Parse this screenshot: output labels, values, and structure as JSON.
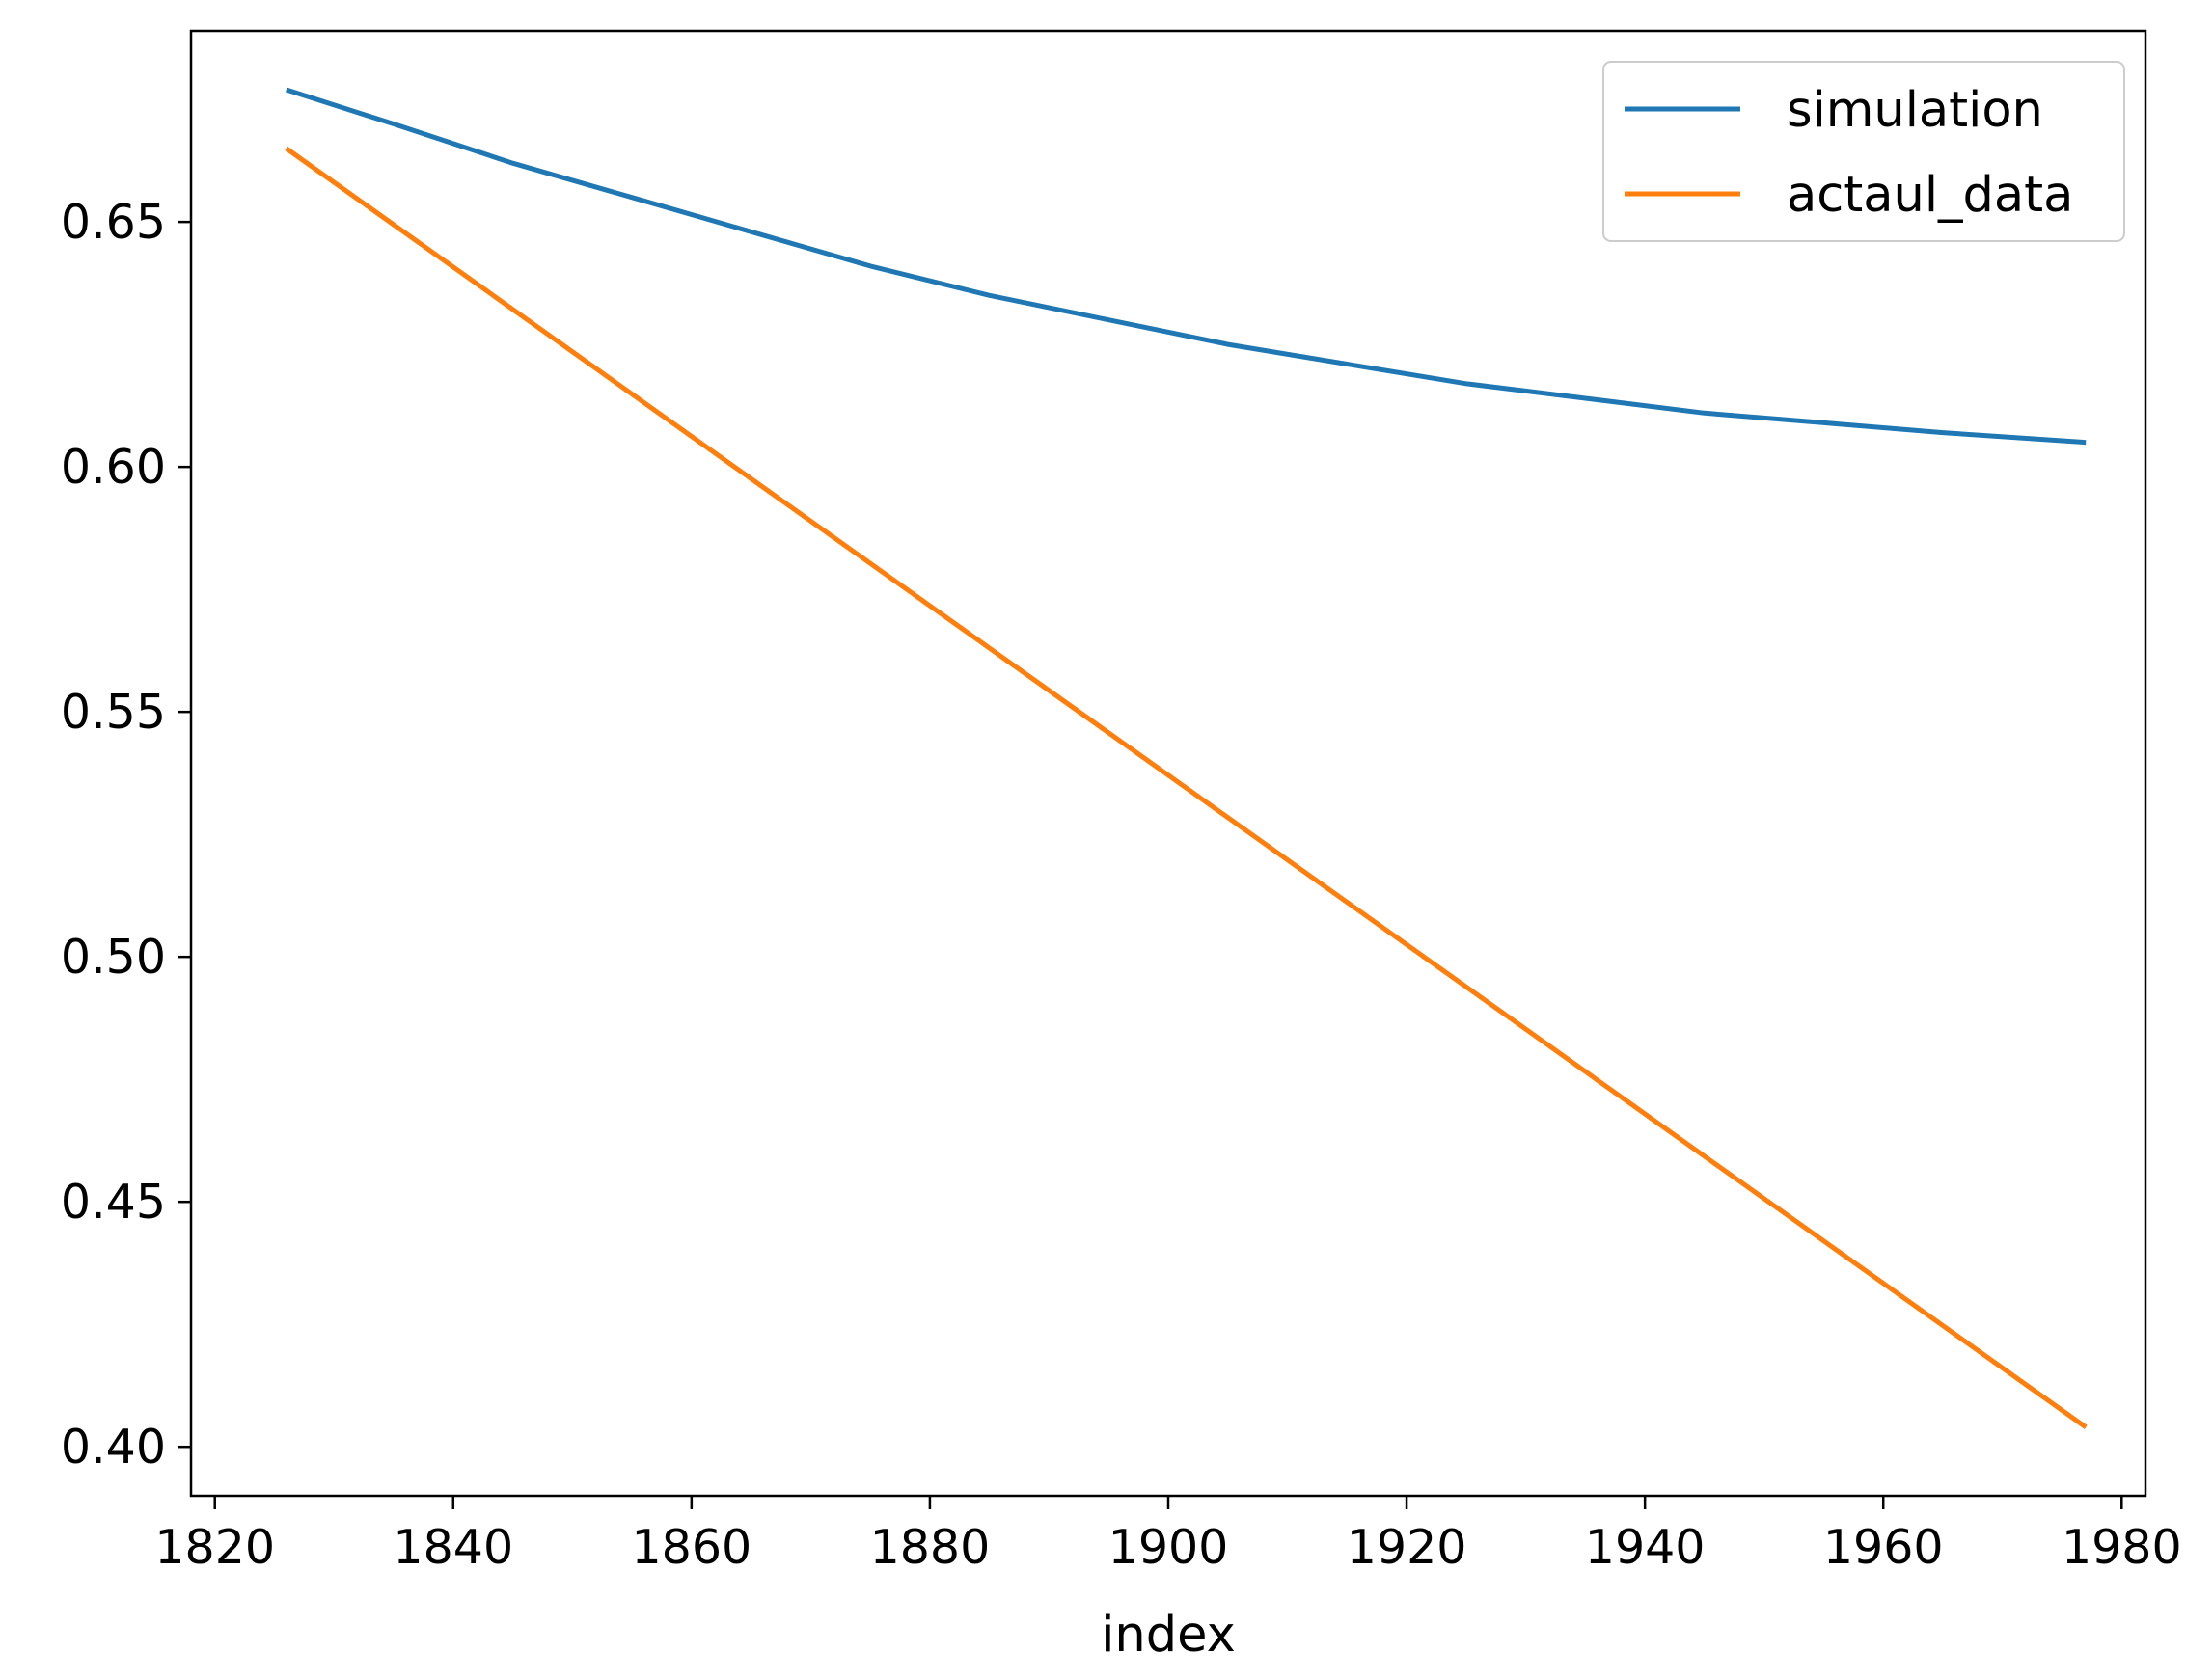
{
  "chart_data": {
    "type": "line",
    "title": "",
    "xlabel": "index",
    "ylabel": "",
    "xlim": [
      1818,
      1982
    ],
    "ylim": [
      0.39,
      0.689
    ],
    "xticks": [
      1820,
      1840,
      1860,
      1880,
      1900,
      1920,
      1940,
      1960,
      1980
    ],
    "yticks": [
      0.4,
      0.45,
      0.5,
      0.55,
      0.6,
      0.65
    ],
    "xtick_labels": [
      "1820",
      "1840",
      "1860",
      "1880",
      "1900",
      "1920",
      "1940",
      "1960",
      "1980"
    ],
    "ytick_labels": [
      "0.40",
      "0.45",
      "0.50",
      "0.55",
      "0.60",
      "0.65"
    ],
    "grid": false,
    "legend_position": "top-right",
    "series": [
      {
        "name": "simulation",
        "color": "#1f77b4",
        "points": [
          [
            1826,
            0.677
          ],
          [
            1835,
            0.67
          ],
          [
            1845,
            0.662
          ],
          [
            1855,
            0.655
          ],
          [
            1865,
            0.648
          ],
          [
            1875,
            0.641
          ],
          [
            1885,
            0.635
          ],
          [
            1895,
            0.63
          ],
          [
            1905,
            0.625
          ],
          [
            1915,
            0.621
          ],
          [
            1925,
            0.617
          ],
          [
            1935,
            0.614
          ],
          [
            1945,
            0.611
          ],
          [
            1955,
            0.609
          ],
          [
            1965,
            0.607
          ],
          [
            1977,
            0.605
          ]
        ]
      },
      {
        "name": "actaul_data",
        "color": "#ff7f0e",
        "points": [
          [
            1826,
            0.665
          ],
          [
            1977,
            0.404
          ]
        ]
      }
    ]
  }
}
